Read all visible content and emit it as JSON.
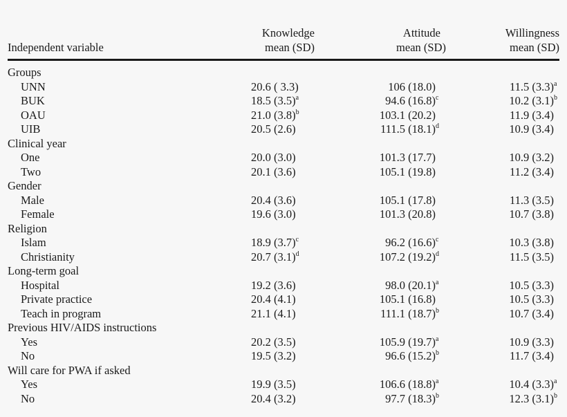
{
  "table": {
    "headers": {
      "variable": "Independent variable",
      "knowledge_line1": "Knowledge",
      "knowledge_line2": "mean (SD)",
      "attitude_line1": "Attitude",
      "attitude_line2": "mean (SD)",
      "willingness_line1": "Willingness",
      "willingness_line2": "mean (SD)"
    },
    "rows": [
      {
        "type": "group",
        "label": "Groups"
      },
      {
        "type": "item",
        "label": "UNN",
        "k": "20.6 ( 3.3)",
        "ks": "",
        "a": "106 (18.0)",
        "as": "",
        "w": "11.5 (3.3)",
        "ws": "a"
      },
      {
        "type": "item",
        "label": "BUK",
        "k": "18.5 (3.5)",
        "ks": "a",
        "a": "94.6 (16.8)",
        "as": "c",
        "w": "10.2 (3.1)",
        "ws": "b"
      },
      {
        "type": "item",
        "label": "OAU",
        "k": "21.0 (3.8)",
        "ks": "b",
        "a": "103.1 (20.2)",
        "as": "",
        "w": "11.9 (3.4)",
        "ws": ""
      },
      {
        "type": "item",
        "label": "UIB",
        "k": "20.5 (2.6)",
        "ks": "",
        "a": "111.5 (18.1)",
        "as": "d",
        "w": "10.9 (3.4)",
        "ws": ""
      },
      {
        "type": "group",
        "label": "Clinical year"
      },
      {
        "type": "item",
        "label": "One",
        "k": "20.0 (3.0)",
        "ks": "",
        "a": "101.3 (17.7)",
        "as": "",
        "w": "10.9 (3.2)",
        "ws": ""
      },
      {
        "type": "item",
        "label": "Two",
        "k": "20.1 (3.6)",
        "ks": "",
        "a": "105.1 (19.8)",
        "as": "",
        "w": "11.2 (3.4)",
        "ws": ""
      },
      {
        "type": "group",
        "label": "Gender"
      },
      {
        "type": "item",
        "label": "Male",
        "k": "20.4 (3.6)",
        "ks": "",
        "a": "105.1 (17.8)",
        "as": "",
        "w": "11.3 (3.5)",
        "ws": ""
      },
      {
        "type": "item",
        "label": "Female",
        "k": "19.6 (3.0)",
        "ks": "",
        "a": "101.3 (20.8)",
        "as": "",
        "w": "10.7 (3.8)",
        "ws": ""
      },
      {
        "type": "group",
        "label": "Religion"
      },
      {
        "type": "item",
        "label": "Islam",
        "k": "18.9 (3.7)",
        "ks": "c",
        "a": "96.2 (16.6)",
        "as": "c",
        "w": "10.3 (3.8)",
        "ws": ""
      },
      {
        "type": "item",
        "label": "Christianity",
        "k": "20.7 (3.1)",
        "ks": "d",
        "a": "107.2 (19.2)",
        "as": "d",
        "w": "11.5 (3.5)",
        "ws": ""
      },
      {
        "type": "group",
        "label": "Long-term goal"
      },
      {
        "type": "item",
        "label": "Hospital",
        "k": "19.2 (3.6)",
        "ks": "",
        "a": "98.0 (20.1)",
        "as": "a",
        "w": "10.5 (3.3)",
        "ws": ""
      },
      {
        "type": "item",
        "label": "Private practice",
        "k": "20.4 (4.1)",
        "ks": "",
        "a": "105.1 (16.8)",
        "as": "",
        "w": "10.5 (3.3)",
        "ws": ""
      },
      {
        "type": "item",
        "label": "Teach in program",
        "k": "21.1 (4.1)",
        "ks": "",
        "a": "111.1 (18.7)",
        "as": "b",
        "w": "10.7 (3.4)",
        "ws": ""
      },
      {
        "type": "group",
        "label": "Previous HIV/AIDS instructions"
      },
      {
        "type": "item",
        "label": "Yes",
        "k": "20.2 (3.5)",
        "ks": "",
        "a": "105.9 (19.7)",
        "as": "a",
        "w": "10.9 (3.3)",
        "ws": ""
      },
      {
        "type": "item",
        "label": "No",
        "k": "19.5 (3.2)",
        "ks": "",
        "a": "96.6 (15.2)",
        "as": "b",
        "w": "11.7 (3.4)",
        "ws": ""
      },
      {
        "type": "group",
        "label": "Will care for PWA if asked"
      },
      {
        "type": "item",
        "label": "Yes",
        "k": "19.9 (3.5)",
        "ks": "",
        "a": "106.6 (18.8)",
        "as": "a",
        "w": "10.4 (3.3)",
        "ws": "a"
      },
      {
        "type": "item",
        "label": "No",
        "k": "20.4 (3.2)",
        "ks": "",
        "a": "97.7 (18.3)",
        "as": "b",
        "w": "12.3 (3.1)",
        "ws": "b"
      }
    ]
  }
}
